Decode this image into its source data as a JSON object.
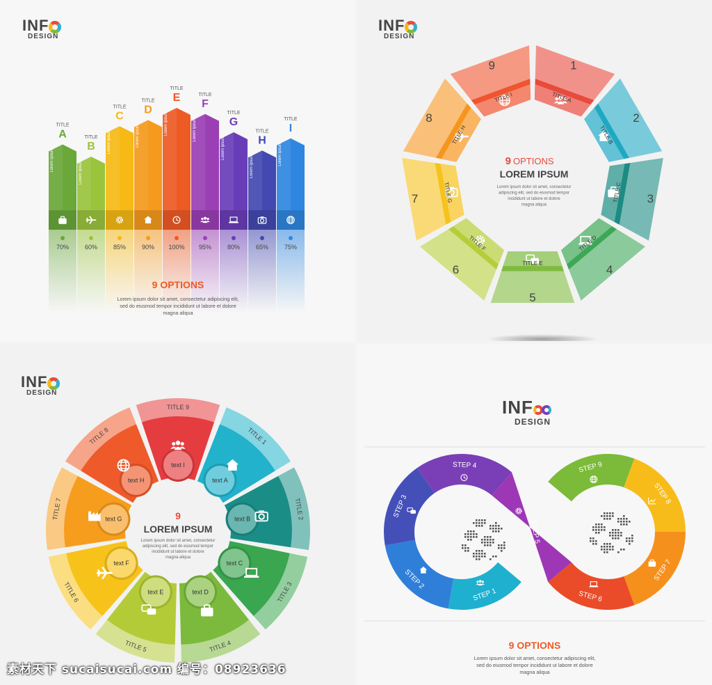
{
  "q1": {
    "logo": {
      "line1": "INF",
      "line2": "DESIGN"
    },
    "bars": [
      {
        "title": "TITLE",
        "letter": "A",
        "percent": "70%",
        "color": "#6aa83a",
        "icon": "briefcase-icon",
        "value": 70
      },
      {
        "title": "TITLE",
        "letter": "B",
        "percent": "60%",
        "color": "#9ac43c",
        "icon": "airplane-icon",
        "value": 60
      },
      {
        "title": "TITLE",
        "letter": "C",
        "percent": "85%",
        "color": "#f6b915",
        "icon": "gear-icon",
        "value": 85
      },
      {
        "title": "TITLE",
        "letter": "D",
        "percent": "90%",
        "color": "#f59a1c",
        "icon": "house-icon",
        "value": 90
      },
      {
        "title": "TITLE",
        "letter": "E",
        "percent": "100%",
        "color": "#ee5a24",
        "icon": "clock-icon",
        "value": 100
      },
      {
        "title": "TITLE",
        "letter": "F",
        "percent": "95%",
        "color": "#9b3fb5",
        "icon": "people-icon",
        "value": 95
      },
      {
        "title": "TITLE",
        "letter": "G",
        "percent": "80%",
        "color": "#6a3db8",
        "icon": "laptop-icon",
        "value": 80
      },
      {
        "title": "TITLE",
        "letter": "H",
        "percent": "65%",
        "color": "#4249b0",
        "icon": "camera-icon",
        "value": 65
      },
      {
        "title": "TITLE",
        "letter": "I",
        "percent": "75%",
        "color": "#2f86e0",
        "icon": "globe-icon",
        "value": 75
      }
    ],
    "bar_text": "Lorem ipsum",
    "heading": "9 OPTIONS",
    "body_lines": [
      "Lorem ipsum dolor sit amet, consectetur adipiscing elit,",
      "sed do eiusmod tempor incididunt ut labore et dolore",
      "magna aliqua"
    ]
  },
  "q2": {
    "logo": {
      "line1": "INF",
      "line2": "DESIGN"
    },
    "center_number": "9",
    "center_options": "OPTIONS",
    "center_title": "LOREM IPSUM",
    "center_lines": [
      "Lorem ipsum dolor sit amet, consectetur",
      "adipiscing elit, sed do eiusmod tempor",
      "incididunt ut labore et dolore",
      "magna aliqua"
    ],
    "segments": [
      {
        "number": "1",
        "title": "TITLE A",
        "color": "#e84a3c",
        "icon": "people-icon"
      },
      {
        "number": "2",
        "title": "TITLE B",
        "color": "#20a8c3",
        "icon": "house-icon"
      },
      {
        "number": "3",
        "title": "TITLE C",
        "color": "#1c8b82",
        "icon": "briefcase-icon"
      },
      {
        "number": "4",
        "title": "TITLE D",
        "color": "#3ea757",
        "icon": "laptop-icon"
      },
      {
        "number": "5",
        "title": "TITLE E",
        "color": "#7fbb3f",
        "icon": "chat-icon"
      },
      {
        "number": "6",
        "title": "TITLE F",
        "color": "#b6cd3a",
        "icon": "gear-icon"
      },
      {
        "number": "7",
        "title": "TITLE G",
        "color": "#f6c21c",
        "icon": "camera-icon"
      },
      {
        "number": "8",
        "title": "TITLE H",
        "color": "#f6951e",
        "icon": "airplane-icon"
      },
      {
        "number": "9",
        "title": "TITLE I",
        "color": "#ee5530",
        "icon": "globe-icon"
      }
    ]
  },
  "q3": {
    "logo": {
      "line1": "INF",
      "line2": "DESIGN"
    },
    "center_number": "9",
    "center_title": "LOREM IPSUM",
    "center_lines": [
      "Lorem ipsum dolor sit amet, consectetur",
      "adipiscing elit, sed do eiusmod tempor",
      "incididunt ut labore et dolore",
      "magna aliqua"
    ],
    "segments": [
      {
        "title": "TITLE 1",
        "text": "text A",
        "color": "#22b2cb",
        "icon": "house-icon"
      },
      {
        "title": "TITLE 2",
        "text": "text B",
        "color": "#1a8e86",
        "icon": "camera-icon"
      },
      {
        "title": "TITLE 3",
        "text": "text C",
        "color": "#3aa64f",
        "icon": "laptop-icon"
      },
      {
        "title": "TITLE 4",
        "text": "text D",
        "color": "#7cba3d",
        "icon": "briefcase-icon"
      },
      {
        "title": "TITLE 5",
        "text": "text E",
        "color": "#b4cb38",
        "icon": "chat-icon"
      },
      {
        "title": "TITLE 6",
        "text": "text F",
        "color": "#f7c31b",
        "icon": "airplane-icon"
      },
      {
        "title": "TITLE 7",
        "text": "text G",
        "color": "#f69d1d",
        "icon": "factory-icon"
      },
      {
        "title": "TITLE 8",
        "text": "text H",
        "color": "#ef5a2a",
        "icon": "globe-icon"
      },
      {
        "title": "TITLE 9",
        "text": "text I",
        "color": "#e53c3f",
        "icon": "people-icon"
      }
    ]
  },
  "q4": {
    "logo": {
      "line1": "INF",
      "line2": "DESIGN"
    },
    "steps": [
      {
        "label": "STEP 1",
        "color": "#1fb0cf",
        "icon": "people-icon"
      },
      {
        "label": "STEP 2",
        "color": "#2f7fd9",
        "icon": "house-icon"
      },
      {
        "label": "STEP 3",
        "color": "#4450b8",
        "icon": "chat-icon"
      },
      {
        "label": "STEP 4",
        "color": "#7a3fb7",
        "icon": "clock-icon"
      },
      {
        "label": "STEP 5",
        "color": "#9d37b5",
        "icon": "gear-icon"
      },
      {
        "label": "STEP 6",
        "color": "#ea4c29",
        "icon": "laptop-icon"
      },
      {
        "label": "STEP 7",
        "color": "#f6901d",
        "icon": "briefcase-icon"
      },
      {
        "label": "STEP 8",
        "color": "#f8bc1a",
        "icon": "chart-icon"
      },
      {
        "label": "STEP 9",
        "color": "#7cba3a",
        "icon": "globe-icon"
      }
    ],
    "heading": "9 OPTIONS",
    "body_lines": [
      "Lorem ipsum dolor sit amet, consectetur adipiscing elit,",
      "sed do eiusmod tempor incididunt ut labore et dolore",
      "magna aliqua"
    ]
  },
  "watermark": "素材天下 sucaisucai.com  编号：08923636"
}
